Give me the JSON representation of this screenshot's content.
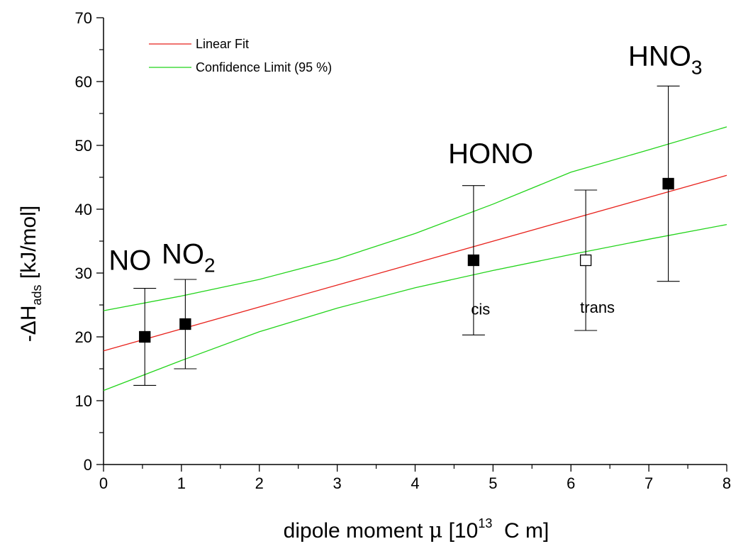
{
  "chart_data": {
    "type": "scatter",
    "xlabel": {
      "prefix": "dipole moment ",
      "symbol": "μ",
      "unit_open": " [10",
      "unit_sup": "13",
      "unit_close": "  C m]"
    },
    "ylabel": {
      "prefix": "-ΔH",
      "sub": "ads",
      "suffix": " [kJ/mol]"
    },
    "xlim": [
      0,
      8
    ],
    "ylim": [
      0,
      70
    ],
    "xticks": [
      "0",
      "1",
      "2",
      "3",
      "4",
      "5",
      "6",
      "7",
      "8"
    ],
    "yticks": [
      "0",
      "10",
      "20",
      "30",
      "40",
      "50",
      "60",
      "70"
    ],
    "grid": false,
    "legend_position": "top-left",
    "legend": [
      {
        "label": "Linear Fit",
        "color": "#e8221c"
      },
      {
        "label": "Confidence Limit (95 %)",
        "color": "#22d41a"
      }
    ],
    "points": [
      {
        "x": 0.53,
        "y": 20,
        "err_low": 12.4,
        "err_high": 27.6,
        "filled": true
      },
      {
        "x": 1.05,
        "y": 22,
        "err_low": 15,
        "err_high": 29,
        "filled": true
      },
      {
        "x": 4.75,
        "y": 32,
        "err_low": 20.3,
        "err_high": 43.7,
        "filled": true
      },
      {
        "x": 6.19,
        "y": 32,
        "err_low": 21,
        "err_high": 43,
        "filled": false
      },
      {
        "x": 7.25,
        "y": 44,
        "err_low": 28.7,
        "err_high": 59.3,
        "filled": true
      }
    ],
    "linear_fit": {
      "x": [
        0,
        8
      ],
      "y": [
        17.8,
        45.3
      ]
    },
    "confidence_upper": {
      "x": [
        0,
        1,
        2,
        3,
        4,
        5,
        6,
        7,
        8
      ],
      "y": [
        24.1,
        26.4,
        29.0,
        32.2,
        36.2,
        40.8,
        45.8,
        49.3,
        52.9
      ]
    },
    "confidence_lower": {
      "x": [
        0,
        1,
        2,
        3,
        4,
        5,
        6,
        7,
        8
      ],
      "y": [
        11.6,
        16.3,
        20.8,
        24.5,
        27.7,
        30.4,
        32.9,
        35.3,
        37.6
      ]
    },
    "annotations": [
      {
        "text": "NO",
        "sub": "",
        "x": 0.34,
        "y": 30.5,
        "size": "big"
      },
      {
        "text": "NO",
        "sub": "2",
        "x": 1.09,
        "y": 31.5,
        "size": "big"
      },
      {
        "text": "HONO",
        "sub": "",
        "x": 4.97,
        "y": 47.2,
        "size": "big"
      },
      {
        "text": "HNO",
        "sub": "3",
        "x": 7.21,
        "y": 62.5,
        "size": "big"
      },
      {
        "text": "cis",
        "sub": "",
        "x": 4.84,
        "y": 23.5,
        "size": "small"
      },
      {
        "text": "trans",
        "sub": "",
        "x": 6.34,
        "y": 23.8,
        "size": "small"
      }
    ]
  }
}
